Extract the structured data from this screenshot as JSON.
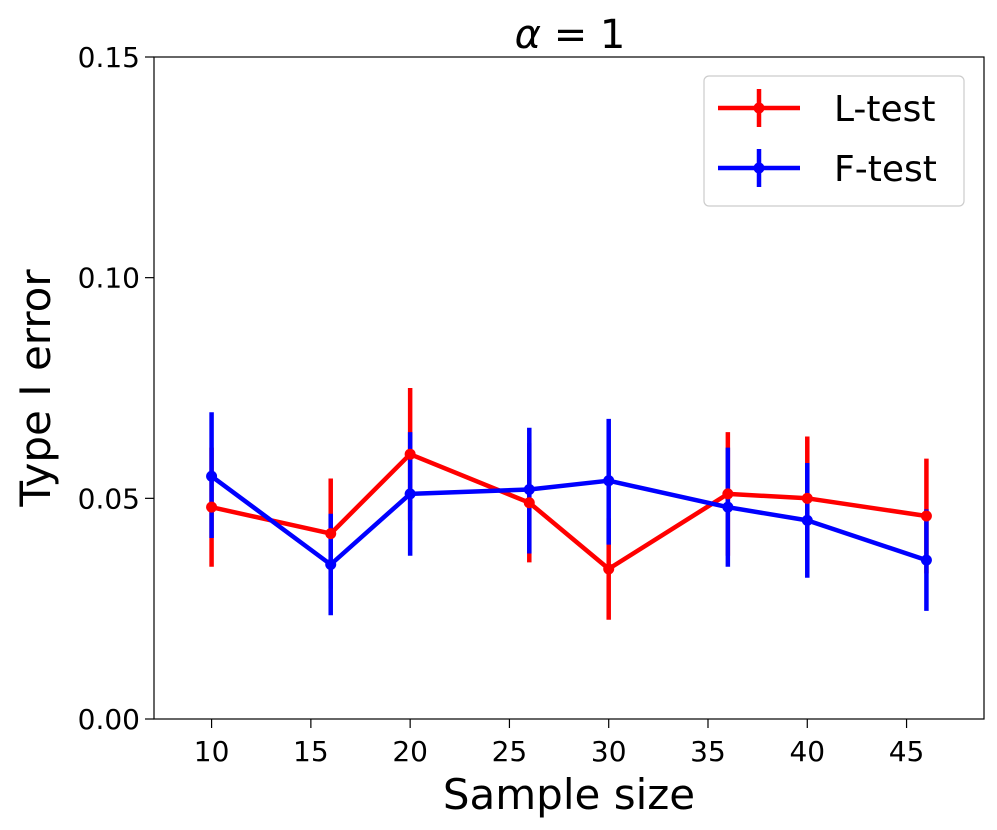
{
  "chart_data": {
    "type": "line",
    "title_symbol": "α",
    "title_rest": " = 1",
    "xlabel": "Sample size",
    "ylabel": "Type I error",
    "xlim": [
      7.1,
      48.9
    ],
    "ylim": [
      0,
      0.15
    ],
    "xticks": [
      10,
      15,
      20,
      25,
      30,
      35,
      40,
      45
    ],
    "yticks": [
      0.0,
      0.05,
      0.1,
      0.15
    ],
    "ytick_labels": [
      "0.00",
      "0.05",
      "0.10",
      "0.15"
    ],
    "x": [
      10,
      16,
      20,
      26,
      30,
      36,
      40,
      46
    ],
    "series": [
      {
        "name": "L-test",
        "color": "#ff0000",
        "values": [
          0.048,
          0.042,
          0.06,
          0.049,
          0.034,
          0.051,
          0.05,
          0.046
        ],
        "err_low": [
          0.0345,
          0.0295,
          0.045,
          0.0355,
          0.0225,
          0.037,
          0.036,
          0.033
        ],
        "err_high": [
          0.0615,
          0.0545,
          0.075,
          0.0625,
          0.0455,
          0.065,
          0.064,
          0.059
        ]
      },
      {
        "name": "F-test",
        "color": "#0000ff",
        "values": [
          0.055,
          0.035,
          0.051,
          0.052,
          0.054,
          0.048,
          0.045,
          0.036
        ],
        "err_low": [
          0.041,
          0.0235,
          0.037,
          0.0375,
          0.0395,
          0.0345,
          0.032,
          0.0245
        ],
        "err_high": [
          0.0695,
          0.0465,
          0.065,
          0.066,
          0.068,
          0.0615,
          0.058,
          0.0475
        ]
      }
    ],
    "legend_position": "top-right"
  }
}
